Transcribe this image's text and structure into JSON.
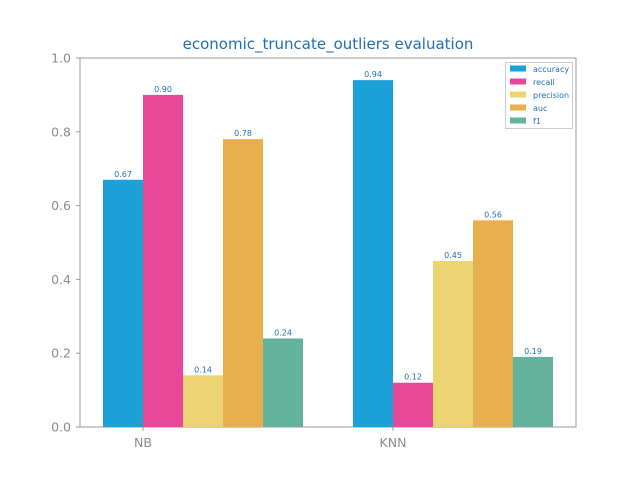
{
  "chart_data": {
    "type": "bar",
    "title": "economic_truncate_outliers evaluation",
    "xlabel": "",
    "ylabel": "",
    "categories": [
      "NB",
      "KNN"
    ],
    "series": [
      {
        "name": "accuracy",
        "values": [
          0.67,
          0.94
        ],
        "color": "#1ba1d8"
      },
      {
        "name": "recall",
        "values": [
          0.9,
          0.12
        ],
        "color": "#e8489a"
      },
      {
        "name": "precision",
        "values": [
          0.14,
          0.45
        ],
        "color": "#ecd474"
      },
      {
        "name": "auc",
        "values": [
          0.78,
          0.56
        ],
        "color": "#e8af4e"
      },
      {
        "name": "f1",
        "values": [
          0.24,
          0.19
        ],
        "color": "#63b39d"
      }
    ],
    "ylim": [
      0,
      1.0
    ],
    "yticks": [
      "0.0",
      "0.2",
      "0.4",
      "0.6",
      "0.8",
      "1.0"
    ],
    "grid": false,
    "legend_placement": "top-right",
    "data_labels": [
      [
        "0.67",
        "0.94"
      ],
      [
        "0.90",
        "0.12"
      ],
      [
        "0.14",
        "0.45"
      ],
      [
        "0.78",
        "0.56"
      ],
      [
        "0.24",
        "0.19"
      ]
    ]
  }
}
